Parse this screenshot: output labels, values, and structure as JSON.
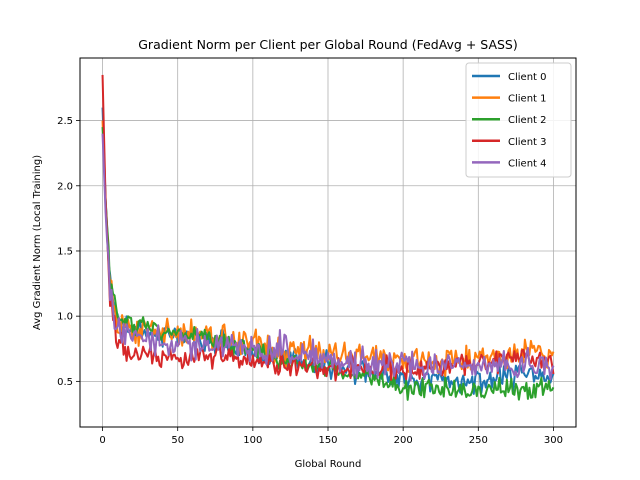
{
  "chart_data": {
    "type": "line",
    "title": "Gradient Norm per Client per Global Round (FedAvg + SASS)",
    "xlabel": "Global Round",
    "ylabel": "Avg Gradient Norm (Local Training)",
    "xlim": [
      -15,
      315
    ],
    "ylim": [
      0.15,
      2.98
    ],
    "x_ticks": [
      0,
      50,
      100,
      150,
      200,
      250,
      300
    ],
    "y_ticks": [
      0.5,
      1.0,
      1.5,
      2.0,
      2.5
    ],
    "x_tick_labels": [
      "0",
      "50",
      "100",
      "150",
      "200",
      "250",
      "300"
    ],
    "y_tick_labels": [
      "0.5",
      "1.0",
      "1.5",
      "2.0",
      "2.5"
    ],
    "grid": true,
    "legend_position": "top-right",
    "rounds": 301,
    "series": [
      {
        "name": "Client 0",
        "color": "#1f77b4",
        "anchors": [
          [
            0,
            2.6
          ],
          [
            2,
            1.9
          ],
          [
            5,
            1.25
          ],
          [
            10,
            0.95
          ],
          [
            20,
            0.9
          ],
          [
            40,
            0.85
          ],
          [
            60,
            0.82
          ],
          [
            80,
            0.78
          ],
          [
            100,
            0.72
          ],
          [
            120,
            0.68
          ],
          [
            150,
            0.62
          ],
          [
            180,
            0.58
          ],
          [
            200,
            0.52
          ],
          [
            220,
            0.5
          ],
          [
            250,
            0.5
          ],
          [
            280,
            0.55
          ],
          [
            300,
            0.55
          ]
        ],
        "noise": 0.09
      },
      {
        "name": "Client 1",
        "color": "#ff7f0e",
        "anchors": [
          [
            0,
            2.5
          ],
          [
            2,
            1.85
          ],
          [
            5,
            1.2
          ],
          [
            10,
            0.95
          ],
          [
            20,
            0.9
          ],
          [
            40,
            0.88
          ],
          [
            60,
            0.88
          ],
          [
            80,
            0.85
          ],
          [
            100,
            0.8
          ],
          [
            120,
            0.75
          ],
          [
            150,
            0.72
          ],
          [
            180,
            0.7
          ],
          [
            200,
            0.68
          ],
          [
            220,
            0.65
          ],
          [
            250,
            0.68
          ],
          [
            280,
            0.72
          ],
          [
            300,
            0.72
          ]
        ],
        "noise": 0.1
      },
      {
        "name": "Client 2",
        "color": "#2ca02c",
        "anchors": [
          [
            0,
            2.45
          ],
          [
            2,
            1.9
          ],
          [
            5,
            1.3
          ],
          [
            10,
            1.0
          ],
          [
            20,
            0.95
          ],
          [
            40,
            0.9
          ],
          [
            60,
            0.85
          ],
          [
            80,
            0.8
          ],
          [
            100,
            0.75
          ],
          [
            120,
            0.65
          ],
          [
            150,
            0.6
          ],
          [
            180,
            0.52
          ],
          [
            200,
            0.45
          ],
          [
            220,
            0.45
          ],
          [
            250,
            0.43
          ],
          [
            280,
            0.43
          ],
          [
            300,
            0.45
          ]
        ],
        "noise": 0.07
      },
      {
        "name": "Client 3",
        "color": "#d62728",
        "anchors": [
          [
            0,
            2.85
          ],
          [
            2,
            1.9
          ],
          [
            5,
            1.1
          ],
          [
            10,
            0.8
          ],
          [
            20,
            0.7
          ],
          [
            40,
            0.68
          ],
          [
            60,
            0.7
          ],
          [
            80,
            0.68
          ],
          [
            100,
            0.65
          ],
          [
            120,
            0.6
          ],
          [
            150,
            0.6
          ],
          [
            180,
            0.62
          ],
          [
            200,
            0.6
          ],
          [
            220,
            0.62
          ],
          [
            250,
            0.65
          ],
          [
            280,
            0.7
          ],
          [
            300,
            0.65
          ]
        ],
        "noise": 0.09
      },
      {
        "name": "Client 4",
        "color": "#9467bd",
        "anchors": [
          [
            0,
            2.4
          ],
          [
            2,
            1.8
          ],
          [
            5,
            1.15
          ],
          [
            10,
            0.9
          ],
          [
            20,
            0.85
          ],
          [
            40,
            0.82
          ],
          [
            60,
            0.8
          ],
          [
            80,
            0.78
          ],
          [
            100,
            0.75
          ],
          [
            120,
            0.72
          ],
          [
            150,
            0.68
          ],
          [
            180,
            0.65
          ],
          [
            200,
            0.63
          ],
          [
            220,
            0.65
          ],
          [
            250,
            0.62
          ],
          [
            280,
            0.63
          ],
          [
            300,
            0.62
          ]
        ],
        "noise": 0.11
      }
    ]
  }
}
